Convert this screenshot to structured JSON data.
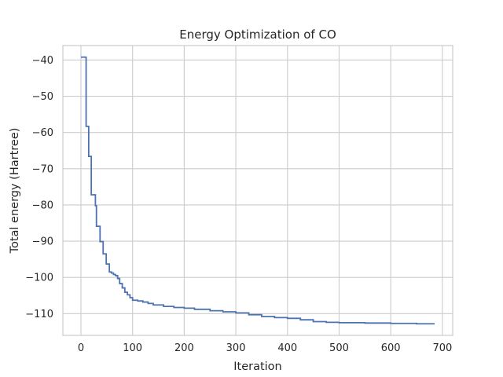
{
  "chart_data": {
    "type": "line",
    "title": "Energy Optimization of CO",
    "xlabel": "Iteration",
    "ylabel": "Total energy (Hartree)",
    "xlim": [
      -35,
      720
    ],
    "ylim": [
      -116,
      -36
    ],
    "xticks": [
      0,
      100,
      200,
      300,
      400,
      500,
      600,
      700
    ],
    "yticks": [
      -40,
      -50,
      -60,
      -70,
      -80,
      -90,
      -100,
      -110
    ],
    "grid": true,
    "legend": "none",
    "line_style": "step",
    "colors": {
      "line": "#4c72b0",
      "grid": "#cccccc",
      "text": "#262626"
    },
    "series": [
      {
        "x": [
          0,
          5,
          10,
          13,
          15,
          18,
          20,
          24,
          28,
          30,
          33,
          37,
          40,
          43,
          46,
          49,
          51,
          55,
          59,
          63,
          67,
          71,
          75,
          80,
          85,
          90,
          95,
          100,
          110,
          120,
          130,
          140,
          160,
          180,
          200,
          220,
          250,
          275,
          300,
          325,
          350,
          375,
          400,
          425,
          450,
          475,
          500,
          550,
          600,
          650,
          685
        ],
        "y": [
          -39.2,
          -39.2,
          -58.3,
          -58.3,
          -66.6,
          -66.6,
          -77.2,
          -77.2,
          -80.2,
          -85.9,
          -85.9,
          -90.1,
          -90.1,
          -93.5,
          -93.5,
          -96.3,
          -96.3,
          -98.5,
          -98.8,
          -99.2,
          -99.5,
          -100.3,
          -101.7,
          -102.9,
          -104.1,
          -104.8,
          -105.6,
          -106.3,
          -106.5,
          -106.8,
          -107.2,
          -107.6,
          -108.0,
          -108.3,
          -108.5,
          -108.8,
          -109.2,
          -109.5,
          -109.8,
          -110.3,
          -110.8,
          -111.1,
          -111.3,
          -111.7,
          -112.2,
          -112.4,
          -112.5,
          -112.6,
          -112.7,
          -112.8,
          -112.8
        ]
      }
    ]
  }
}
